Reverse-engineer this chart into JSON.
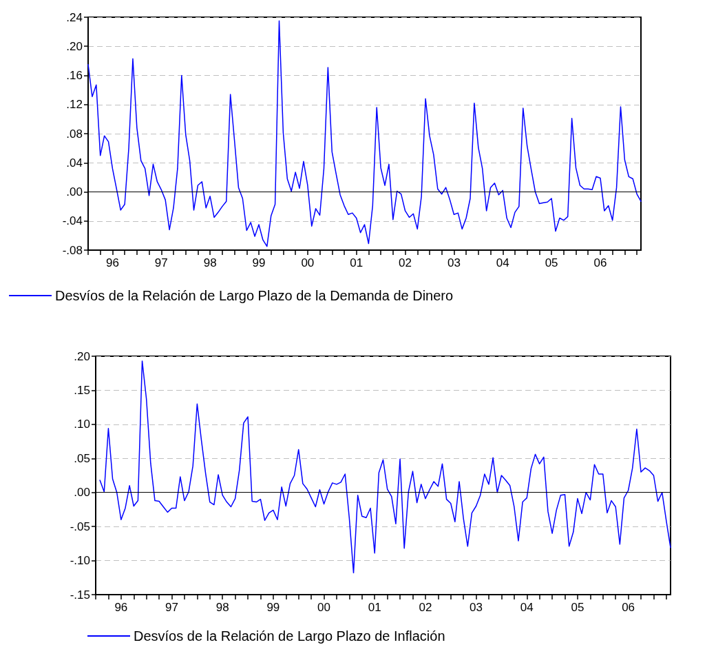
{
  "chart_data": [
    {
      "type": "line",
      "grid": "y",
      "legend": "bottom left",
      "marker": "none",
      "line_style": "solid",
      "ylim": [
        -0.08,
        0.24
      ],
      "yticks": [
        {
          "value": -0.08,
          "label": "-.08"
        },
        {
          "value": -0.04,
          "label": "-.04"
        },
        {
          "value": 0,
          "label": ".00"
        },
        {
          "value": 0.04,
          "label": ".04"
        },
        {
          "value": 0.08,
          "label": ".08"
        },
        {
          "value": 0.12,
          "label": ".12"
        },
        {
          "value": 0.16,
          "label": ".16"
        },
        {
          "value": 0.2,
          "label": ".20"
        },
        {
          "value": 0.24,
          "label": ".24"
        }
      ],
      "categories": [
        null,
        null,
        null,
        null,
        null,
        null,
        "96",
        null,
        null,
        null,
        null,
        null,
        null,
        null,
        null,
        null,
        null,
        null,
        "97",
        null,
        null,
        null,
        null,
        null,
        null,
        null,
        null,
        null,
        null,
        null,
        "98",
        null,
        null,
        null,
        null,
        null,
        null,
        null,
        null,
        null,
        null,
        null,
        "99",
        null,
        null,
        null,
        null,
        null,
        null,
        null,
        null,
        null,
        null,
        null,
        "00",
        null,
        null,
        null,
        null,
        null,
        null,
        null,
        null,
        null,
        null,
        null,
        "01",
        null,
        null,
        null,
        null,
        null,
        null,
        null,
        null,
        null,
        null,
        null,
        "02",
        null,
        null,
        null,
        null,
        null,
        null,
        null,
        null,
        null,
        null,
        null,
        "03",
        null,
        null,
        null,
        null,
        null,
        null,
        null,
        null,
        null,
        null,
        null,
        "04",
        null,
        null,
        null,
        null,
        null,
        null,
        null,
        null,
        null,
        null,
        null,
        "05",
        null,
        null,
        null,
        null,
        null,
        null,
        null,
        null,
        null,
        null,
        null,
        "06",
        null,
        null,
        null,
        null,
        null,
        null,
        null,
        null,
        null,
        null
      ],
      "ref_lines": [
        {
          "axis": "y",
          "value": 0,
          "color": "#000000",
          "line_style": "solid"
        }
      ],
      "series": [
        {
          "name": "Desvíos de la Relación de Largo Plazo de la Demanda de Dinero",
          "color": "#0000ff",
          "values": [
            0.175,
            0.131,
            0.147,
            0.05,
            0.077,
            0.069,
            0.032,
            0.004,
            -0.025,
            -0.017,
            0.06,
            0.183,
            0.088,
            0.043,
            0.032,
            -0.005,
            0.038,
            0.014,
            0.003,
            -0.011,
            -0.052,
            -0.022,
            0.032,
            0.16,
            0.079,
            0.043,
            -0.025,
            0.009,
            0.014,
            -0.022,
            -0.006,
            -0.035,
            -0.028,
            -0.02,
            -0.013,
            0.134,
            0.071,
            0.006,
            -0.009,
            -0.053,
            -0.042,
            -0.061,
            -0.045,
            -0.066,
            -0.075,
            -0.033,
            -0.017,
            0.235,
            0.081,
            0.018,
            0.001,
            0.027,
            0.005,
            0.042,
            0.009,
            -0.047,
            -0.023,
            -0.032,
            0.032,
            0.171,
            0.055,
            0.025,
            -0.004,
            -0.019,
            -0.031,
            -0.029,
            -0.036,
            -0.056,
            -0.045,
            -0.071,
            -0.019,
            0.116,
            0.033,
            0.009,
            0.038,
            -0.038,
            0.001,
            -0.003,
            -0.026,
            -0.035,
            -0.03,
            -0.051,
            -0.006,
            0.128,
            0.077,
            0.051,
            0.004,
            -0.003,
            0.006,
            -0.011,
            -0.031,
            -0.029,
            -0.051,
            -0.036,
            -0.009,
            0.122,
            0.061,
            0.032,
            -0.026,
            0.006,
            0.012,
            -0.004,
            0.002,
            -0.036,
            -0.049,
            -0.028,
            -0.02,
            0.115,
            0.063,
            0.031,
            0.0,
            -0.016,
            -0.015,
            -0.014,
            -0.009,
            -0.054,
            -0.036,
            -0.039,
            -0.034,
            0.101,
            0.033,
            0.009,
            0.004,
            0.004,
            0.003,
            0.021,
            0.019,
            -0.026,
            -0.019,
            -0.039,
            0.006,
            0.117,
            0.044,
            0.021,
            0.018,
            -0.003,
            -0.013
          ]
        }
      ]
    },
    {
      "type": "line",
      "grid": "y",
      "legend": "bottom left",
      "marker": "none",
      "line_style": "solid",
      "ylim": [
        -0.15,
        0.2
      ],
      "yticks": [
        {
          "value": -0.15,
          "label": "-.15"
        },
        {
          "value": -0.1,
          "label": "-.10"
        },
        {
          "value": -0.05,
          "label": "-.05"
        },
        {
          "value": 0,
          "label": ".00"
        },
        {
          "value": 0.05,
          "label": ".05"
        },
        {
          "value": 0.1,
          "label": ".10"
        },
        {
          "value": 0.15,
          "label": ".15"
        },
        {
          "value": 0.2,
          "label": ".20"
        }
      ],
      "categories": [
        null,
        null,
        null,
        null,
        null,
        null,
        "96",
        null,
        null,
        null,
        null,
        null,
        null,
        null,
        null,
        null,
        null,
        null,
        "97",
        null,
        null,
        null,
        null,
        null,
        null,
        null,
        null,
        null,
        null,
        null,
        "98",
        null,
        null,
        null,
        null,
        null,
        null,
        null,
        null,
        null,
        null,
        null,
        "99",
        null,
        null,
        null,
        null,
        null,
        null,
        null,
        null,
        null,
        null,
        null,
        "00",
        null,
        null,
        null,
        null,
        null,
        null,
        null,
        null,
        null,
        null,
        null,
        "01",
        null,
        null,
        null,
        null,
        null,
        null,
        null,
        null,
        null,
        null,
        null,
        "02",
        null,
        null,
        null,
        null,
        null,
        null,
        null,
        null,
        null,
        null,
        null,
        "03",
        null,
        null,
        null,
        null,
        null,
        null,
        null,
        null,
        null,
        null,
        null,
        "04",
        null,
        null,
        null,
        null,
        null,
        null,
        null,
        null,
        null,
        null,
        null,
        "05",
        null,
        null,
        null,
        null,
        null,
        null,
        null,
        null,
        null,
        null,
        null,
        "06",
        null,
        null,
        null,
        null,
        null,
        null,
        null,
        null,
        null,
        null
      ],
      "ref_lines": [
        {
          "axis": "y",
          "value": 0,
          "color": "#000000",
          "line_style": "solid"
        }
      ],
      "series": [
        {
          "name": "Desvíos de la Relación de Largo Plazo de Inflación",
          "color": "#0000ff",
          "values": [
            null,
            0.018,
            0.001,
            0.094,
            0.02,
            0.0,
            -0.04,
            -0.023,
            0.01,
            -0.02,
            -0.012,
            0.193,
            0.137,
            0.043,
            -0.012,
            -0.013,
            -0.021,
            -0.029,
            -0.023,
            -0.023,
            0.023,
            -0.012,
            0.001,
            0.039,
            0.13,
            0.077,
            0.028,
            -0.014,
            -0.018,
            0.026,
            -0.004,
            -0.014,
            -0.021,
            -0.009,
            0.033,
            0.102,
            0.111,
            -0.013,
            -0.014,
            -0.01,
            -0.041,
            -0.03,
            -0.026,
            -0.04,
            0.008,
            -0.02,
            0.013,
            0.025,
            0.063,
            0.013,
            0.005,
            -0.008,
            -0.021,
            0.004,
            -0.017,
            0.001,
            0.014,
            0.012,
            0.015,
            0.027,
            -0.038,
            -0.118,
            -0.004,
            -0.035,
            -0.037,
            -0.023,
            -0.089,
            0.029,
            0.048,
            0.005,
            -0.006,
            -0.046,
            0.049,
            -0.082,
            0.001,
            0.031,
            -0.015,
            0.012,
            -0.009,
            0.004,
            0.016,
            0.009,
            0.042,
            -0.01,
            -0.016,
            -0.043,
            0.016,
            -0.038,
            -0.079,
            -0.03,
            -0.02,
            -0.004,
            0.027,
            0.012,
            0.051,
            0.0,
            0.025,
            0.018,
            0.01,
            -0.021,
            -0.071,
            -0.014,
            -0.008,
            0.035,
            0.056,
            0.042,
            0.052,
            -0.028,
            -0.06,
            -0.026,
            -0.004,
            -0.003,
            -0.079,
            -0.058,
            -0.009,
            -0.031,
            0.0,
            -0.011,
            0.041,
            0.027,
            0.027,
            -0.03,
            -0.012,
            -0.021,
            -0.076,
            -0.008,
            0.003,
            0.036,
            0.093,
            0.03,
            0.036,
            0.032,
            0.025,
            -0.013,
            0.0,
            -0.042,
            -0.081
          ]
        }
      ]
    }
  ]
}
